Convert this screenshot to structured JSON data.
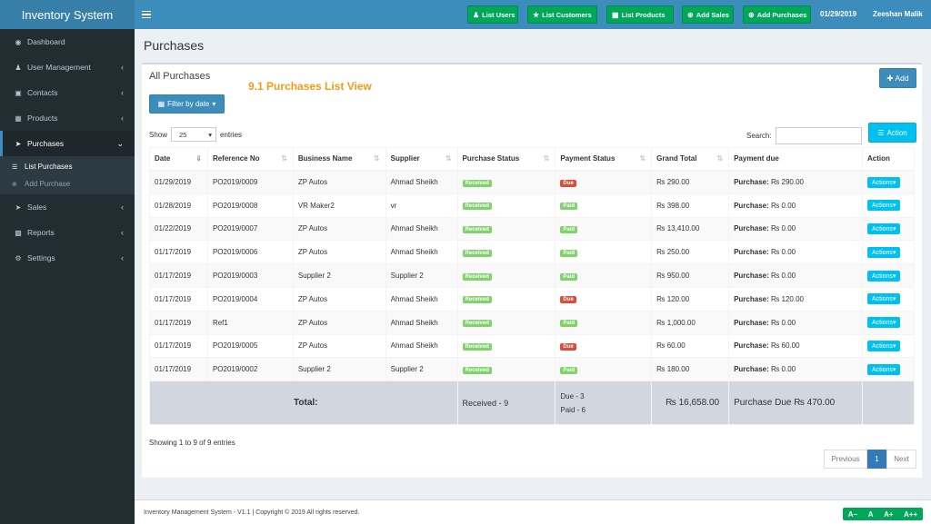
{
  "app_title": "Inventory System",
  "topbar": {
    "buttons": [
      {
        "label": "List Users"
      },
      {
        "label": "List Customers"
      },
      {
        "label": "List Products"
      },
      {
        "label": "Add Sales"
      },
      {
        "label": "Add Purchases"
      }
    ],
    "date": "01/29/2019",
    "user": "Zeeshan Malik"
  },
  "sidebar": {
    "items": [
      {
        "label": "Dashboard"
      },
      {
        "label": "User Management"
      },
      {
        "label": "Contacts"
      },
      {
        "label": "Products"
      },
      {
        "label": "Purchases"
      },
      {
        "label": "Sales"
      },
      {
        "label": "Reports"
      },
      {
        "label": "Settings"
      }
    ],
    "sub_items": [
      {
        "label": "List Purchases"
      },
      {
        "label": "Add Purchase"
      }
    ]
  },
  "page_title": "Purchases",
  "box": {
    "title": "All Purchases",
    "annotation": "9.1 Purchases List  View",
    "add_label": "Add",
    "filter_label": "Filter by date",
    "show_label": "Show",
    "entries_value": "25",
    "entries_label": "entries",
    "search_label": "Search:",
    "action_label": "Action"
  },
  "table": {
    "headers": [
      "Date",
      "Reference No",
      "Business Name",
      "Supplier",
      "Purchase Status",
      "Payment Status",
      "Grand Total",
      "Payment due",
      "Action"
    ],
    "rows": [
      {
        "date": "01/29/2019",
        "ref": "PO2019/0009",
        "business": "ZP Autos",
        "supplier": "Ahmad Sheikh",
        "pstatus": "Received",
        "paystatus": "Due",
        "total": "₨ 290.00",
        "due_label": "Purchase:",
        "due": "₨ 290.00",
        "action": "Actions"
      },
      {
        "date": "01/28/2019",
        "ref": "PO2019/0008",
        "business": "VR Maker2",
        "supplier": "vr",
        "pstatus": "Received",
        "paystatus": "Paid",
        "total": "₨ 398.00",
        "due_label": "Purchase:",
        "due": "₨ 0.00",
        "action": "Actions"
      },
      {
        "date": "01/22/2019",
        "ref": "PO2019/0007",
        "business": "ZP Autos",
        "supplier": "Ahmad Sheikh",
        "pstatus": "Received",
        "paystatus": "Paid",
        "total": "₨ 13,410.00",
        "due_label": "Purchase:",
        "due": "₨ 0.00",
        "action": "Actions"
      },
      {
        "date": "01/17/2019",
        "ref": "PO2019/0006",
        "business": "ZP Autos",
        "supplier": "Ahmad Sheikh",
        "pstatus": "Received",
        "paystatus": "Paid",
        "total": "₨ 250.00",
        "due_label": "Purchase:",
        "due": "₨ 0.00",
        "action": "Actions"
      },
      {
        "date": "01/17/2019",
        "ref": "PO2019/0003",
        "business": "Supplier 2",
        "supplier": "Supplier 2",
        "pstatus": "Received",
        "paystatus": "Paid",
        "total": "₨ 950.00",
        "due_label": "Purchase:",
        "due": "₨ 0.00",
        "action": "Actions"
      },
      {
        "date": "01/17/2019",
        "ref": "PO2019/0004",
        "business": "ZP Autos",
        "supplier": "Ahmad Sheikh",
        "pstatus": "Received",
        "paystatus": "Due",
        "total": "₨ 120.00",
        "due_label": "Purchase:",
        "due": "₨ 120.00",
        "action": "Actions"
      },
      {
        "date": "01/17/2019",
        "ref": "Ref1",
        "business": "ZP Autos",
        "supplier": "Ahmad Sheikh",
        "pstatus": "Received",
        "paystatus": "Paid",
        "total": "₨ 1,000.00",
        "due_label": "Purchase:",
        "due": "₨ 0.00",
        "action": "Actions"
      },
      {
        "date": "01/17/2019",
        "ref": "PO2019/0005",
        "business": "ZP Autos",
        "supplier": "Ahmad Sheikh",
        "pstatus": "Received",
        "paystatus": "Due",
        "total": "₨ 60.00",
        "due_label": "Purchase:",
        "due": "₨ 60.00",
        "action": "Actions"
      },
      {
        "date": "01/17/2019",
        "ref": "PO2019/0002",
        "business": "Supplier 2",
        "supplier": "Supplier 2",
        "pstatus": "Received",
        "paystatus": "Paid",
        "total": "₨ 180.00",
        "due_label": "Purchase:",
        "due": "₨ 0.00",
        "action": "Actions"
      }
    ],
    "footer": {
      "label": "Total:",
      "received": "Received - 9",
      "due_count": "Due - 3",
      "paid_count": "Paid - 6",
      "grand_total": "₨ 16,658.00",
      "purchase_due": "Purchase Due ₨ 470.00"
    }
  },
  "showing": "Showing 1 to 9 of 9 entries",
  "pagination": {
    "prev": "Previous",
    "page": "1",
    "next": "Next"
  },
  "footer": {
    "text": "Inventory Management System - V1.1 | Copyright © 2019 All rights reserved.",
    "font_tools": [
      "A−",
      "A",
      "A+",
      "A++"
    ]
  },
  "colors": {
    "header": "#3c8dbc",
    "sidebar": "#222d32",
    "success": "#00a65a",
    "danger": "#dd4b39",
    "info": "#00c0ef",
    "annotation": "#f39c12"
  }
}
